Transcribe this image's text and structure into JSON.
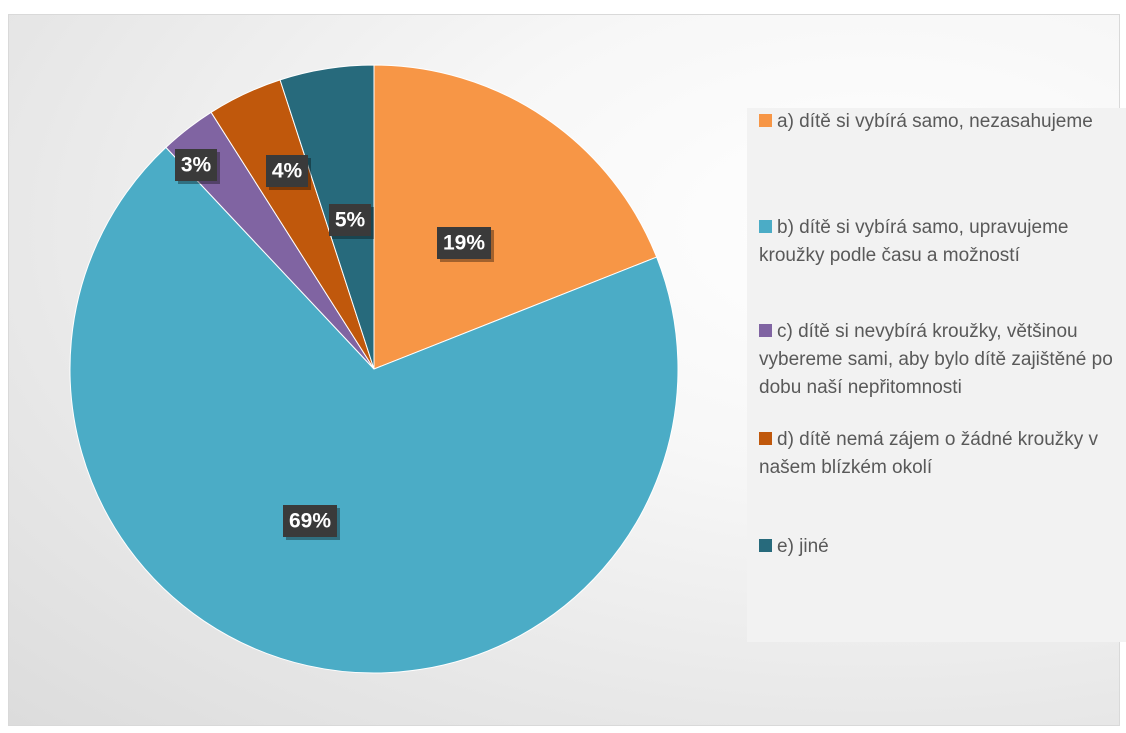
{
  "chart_data": {
    "type": "pie",
    "title": "",
    "slices": [
      {
        "label": "a) dítě si vybírá samo, nezasahujeme",
        "value": 19,
        "value_label": "19%",
        "color": "#F79646"
      },
      {
        "label": "b) dítě si vybírá samo, upravujeme kroužky podle času a možností",
        "value": 69,
        "value_label": "69%",
        "color": "#4BACC6"
      },
      {
        "label": "c) dítě si nevybírá kroužky, většinou vybereme sami, aby bylo dítě zajištěné po dobu naší nepřitomnosti",
        "value": 3,
        "value_label": "3%",
        "color": "#8064A2"
      },
      {
        "label": "d) dítě nemá zájem o žádné kroužky v našem blízkém okolí",
        "value": 4,
        "value_label": "4%",
        "color": "#C0580C"
      },
      {
        "label": "e) jiné",
        "value": 5,
        "value_label": "5%",
        "color": "#276A7C"
      }
    ],
    "legend_position": "right",
    "data_label_style": "dark boxed"
  }
}
